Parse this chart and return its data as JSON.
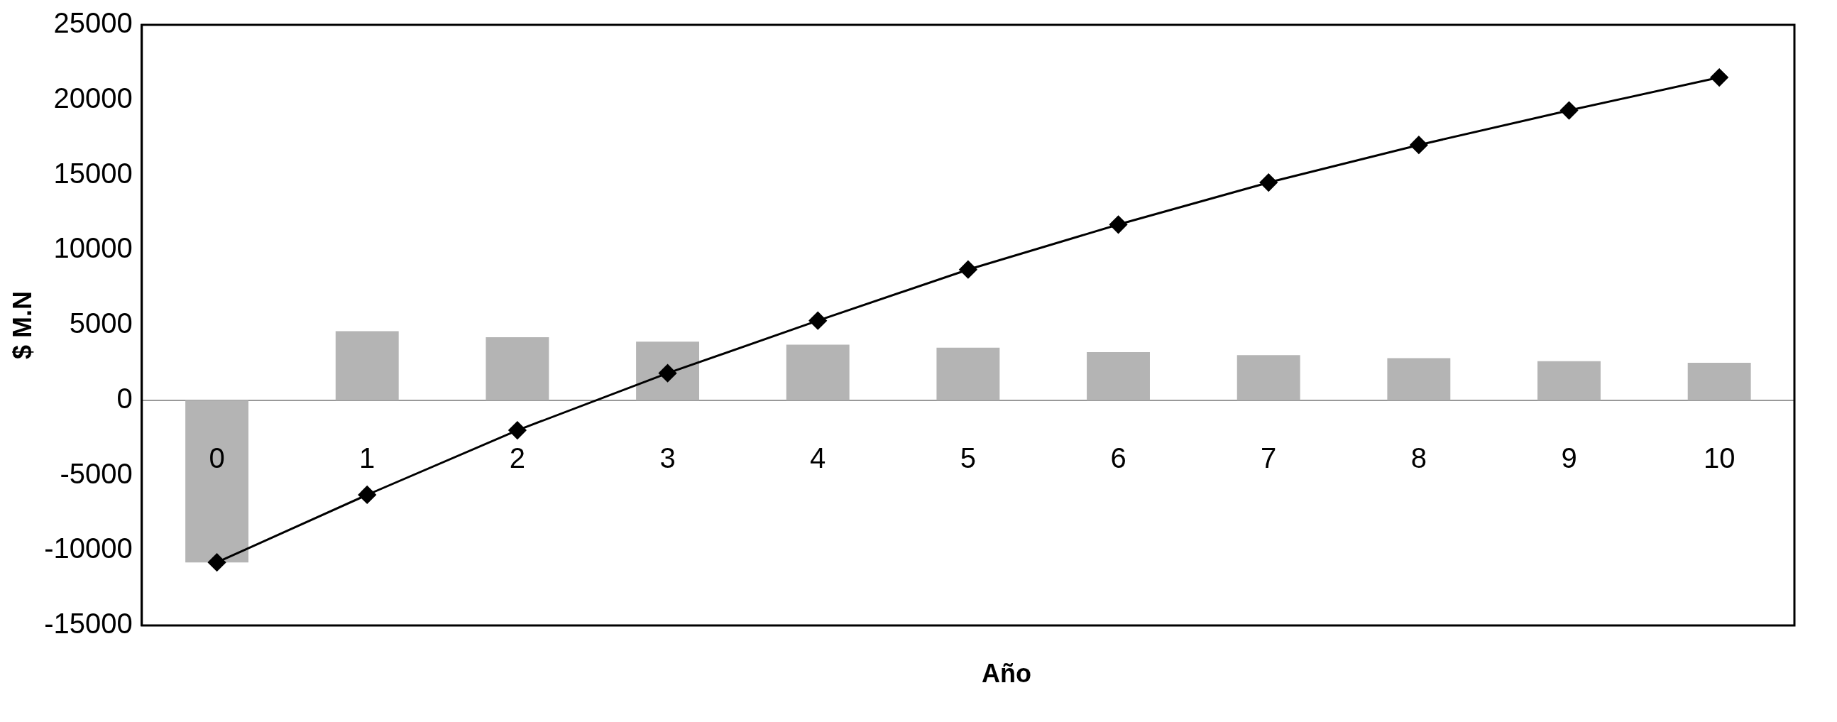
{
  "chart_data": {
    "type": "bar",
    "xlabel": "Año",
    "ylabel": "$ M.N",
    "categories": [
      "0",
      "1",
      "2",
      "3",
      "4",
      "5",
      "6",
      "7",
      "8",
      "9",
      "10"
    ],
    "series": [
      {
        "color": "#b4b4b4",
        "values": [
          -10800,
          4600,
          4200,
          3900,
          3700,
          3500,
          3200,
          3000,
          2800,
          2600,
          2500
        ]
      },
      {
        "type": "line",
        "color": "#000000",
        "marker": "diamond",
        "values": [
          -10800,
          -6300,
          -2000,
          1800,
          5300,
          8700,
          11700,
          14500,
          17000,
          19300,
          21500
        ]
      }
    ],
    "ylim": [
      -15000,
      25000
    ],
    "yticks": [
      -15000,
      -10000,
      -5000,
      0,
      5000,
      10000,
      15000,
      20000,
      25000
    ],
    "grid": false,
    "legend": false
  }
}
